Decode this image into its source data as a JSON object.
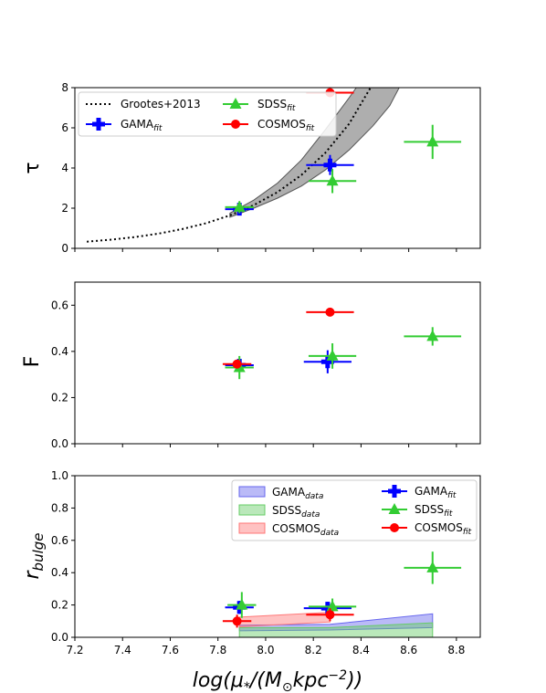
{
  "chart_data": [
    {
      "type": "scatter",
      "ylabel": "τ",
      "xlim": [
        7.2,
        8.9
      ],
      "ylim": [
        0,
        8
      ],
      "yticks": [
        0,
        2,
        4,
        6,
        8
      ],
      "legend": "top-left",
      "legend_entries": [
        "Grootes+2013",
        "GAMA_fit",
        "SDSS_fit",
        "COSMOS_fit"
      ],
      "model_curve": {
        "name": "Grootes+2013",
        "points": [
          [
            7.25,
            0.33
          ],
          [
            7.35,
            0.43
          ],
          [
            7.45,
            0.56
          ],
          [
            7.55,
            0.73
          ],
          [
            7.65,
            0.96
          ],
          [
            7.75,
            1.25
          ],
          [
            7.85,
            1.64
          ],
          [
            7.95,
            2.15
          ],
          [
            8.05,
            2.8
          ],
          [
            8.15,
            3.65
          ],
          [
            8.25,
            4.75
          ],
          [
            8.35,
            6.2
          ],
          [
            8.42,
            7.6
          ],
          [
            8.44,
            8.0
          ]
        ],
        "band_upper": [
          [
            7.85,
            1.75
          ],
          [
            7.95,
            2.4
          ],
          [
            8.05,
            3.25
          ],
          [
            8.15,
            4.4
          ],
          [
            8.25,
            5.9
          ],
          [
            8.35,
            7.5
          ],
          [
            8.38,
            8.0
          ]
        ],
        "band_lower": [
          [
            7.85,
            1.55
          ],
          [
            7.95,
            2.0
          ],
          [
            8.05,
            2.5
          ],
          [
            8.15,
            3.1
          ],
          [
            8.25,
            3.9
          ],
          [
            8.35,
            4.9
          ],
          [
            8.45,
            6.1
          ],
          [
            8.52,
            7.1
          ],
          [
            8.56,
            8.0
          ]
        ]
      },
      "series": [
        {
          "name": "GAMA_fit",
          "color": "#0000ff",
          "marker": "plus",
          "points": [
            {
              "x": 7.89,
              "y": 1.95,
              "xerr": 0.06,
              "yerr": 0.15
            },
            {
              "x": 8.27,
              "y": 4.15,
              "xerr": 0.1,
              "yerr": 0.5
            }
          ]
        },
        {
          "name": "SDSS_fit",
          "color": "#33cc33",
          "marker": "triangle",
          "points": [
            {
              "x": 7.89,
              "y": 2.05,
              "xerr": 0.06,
              "yerr": 0.3
            },
            {
              "x": 8.28,
              "y": 3.35,
              "xerr": 0.1,
              "yerr": 0.6
            },
            {
              "x": 8.7,
              "y": 5.3,
              "xerr": 0.12,
              "yerr": 0.85
            }
          ]
        },
        {
          "name": "COSMOS_fit",
          "color": "#ff0000",
          "marker": "circle",
          "points": [
            {
              "x": 8.27,
              "y": 7.75,
              "xerr": 0.1,
              "yerr": 0.05
            }
          ]
        }
      ]
    },
    {
      "type": "scatter",
      "ylabel": "F",
      "xlim": [
        7.2,
        8.9
      ],
      "ylim": [
        0,
        0.7
      ],
      "yticks": [
        0.0,
        0.2,
        0.4,
        0.6
      ],
      "series": [
        {
          "name": "GAMA_fit",
          "color": "#0000ff",
          "marker": "plus",
          "points": [
            {
              "x": 7.89,
              "y": 0.34,
              "xerr": 0.06,
              "yerr": 0.02
            },
            {
              "x": 8.26,
              "y": 0.355,
              "xerr": 0.1,
              "yerr": 0.05
            }
          ]
        },
        {
          "name": "SDSS_fit",
          "color": "#33cc33",
          "marker": "triangle",
          "points": [
            {
              "x": 7.89,
              "y": 0.33,
              "xerr": 0.06,
              "yerr": 0.05
            },
            {
              "x": 8.28,
              "y": 0.38,
              "xerr": 0.1,
              "yerr": 0.055
            },
            {
              "x": 8.7,
              "y": 0.465,
              "xerr": 0.12,
              "yerr": 0.04
            }
          ]
        },
        {
          "name": "COSMOS_fit",
          "color": "#ff0000",
          "marker": "circle",
          "points": [
            {
              "x": 7.88,
              "y": 0.345,
              "xerr": 0.06,
              "yerr": 0.01
            },
            {
              "x": 8.27,
              "y": 0.57,
              "xerr": 0.1,
              "yerr": 0.01
            }
          ]
        }
      ]
    },
    {
      "type": "scatter",
      "ylabel": "r_bulge",
      "xlabel": "log(μ*/(M⊙kpc⁻²))",
      "xlim": [
        7.2,
        8.9
      ],
      "ylim": [
        0,
        1.0
      ],
      "xticks": [
        7.2,
        7.4,
        7.6,
        7.8,
        8.0,
        8.2,
        8.4,
        8.6,
        8.8
      ],
      "yticks": [
        0.0,
        0.2,
        0.4,
        0.6,
        0.8,
        1.0
      ],
      "legend": "top-right",
      "legend_entries": [
        "GAMA_data",
        "SDSS_data",
        "COSMOS_data",
        "GAMA_fit",
        "SDSS_fit",
        "COSMOS_fit"
      ],
      "bands": [
        {
          "name": "GAMA_data",
          "color": "#6666ee",
          "upper": [
            [
              7.89,
              0.075
            ],
            [
              8.27,
              0.08
            ],
            [
              8.7,
              0.145
            ]
          ],
          "lower": [
            [
              7.89,
              0.04
            ],
            [
              8.27,
              0.045
            ],
            [
              8.7,
              0.06
            ]
          ]
        },
        {
          "name": "SDSS_data",
          "color": "#66cc66",
          "upper": [
            [
              7.89,
              0.06
            ],
            [
              8.27,
              0.06
            ],
            [
              8.7,
              0.09
            ]
          ],
          "lower": [
            [
              7.89,
              0.0
            ],
            [
              8.27,
              0.0
            ],
            [
              8.7,
              0.0
            ]
          ]
        },
        {
          "name": "COSMOS_data",
          "color": "#ff7777",
          "upper": [
            [
              7.89,
              0.125
            ],
            [
              8.27,
              0.155
            ]
          ],
          "lower": [
            [
              7.89,
              0.065
            ],
            [
              8.27,
              0.095
            ]
          ]
        }
      ],
      "series": [
        {
          "name": "GAMA_fit",
          "color": "#0000ff",
          "marker": "plus",
          "points": [
            {
              "x": 7.89,
              "y": 0.185,
              "xerr": 0.06,
              "yerr": 0.04
            },
            {
              "x": 8.26,
              "y": 0.18,
              "xerr": 0.1,
              "yerr": 0.04
            }
          ]
        },
        {
          "name": "SDSS_fit",
          "color": "#33cc33",
          "marker": "triangle",
          "points": [
            {
              "x": 7.9,
              "y": 0.2,
              "xerr": 0.06,
              "yerr": 0.08
            },
            {
              "x": 8.28,
              "y": 0.19,
              "xerr": 0.1,
              "yerr": 0.05
            },
            {
              "x": 8.7,
              "y": 0.43,
              "xerr": 0.12,
              "yerr": 0.1
            }
          ]
        },
        {
          "name": "COSMOS_fit",
          "color": "#ff0000",
          "marker": "circle",
          "points": [
            {
              "x": 7.88,
              "y": 0.1,
              "xerr": 0.06,
              "yerr": 0.04
            },
            {
              "x": 8.27,
              "y": 0.14,
              "xerr": 0.1,
              "yerr": 0.04
            }
          ]
        }
      ]
    }
  ]
}
